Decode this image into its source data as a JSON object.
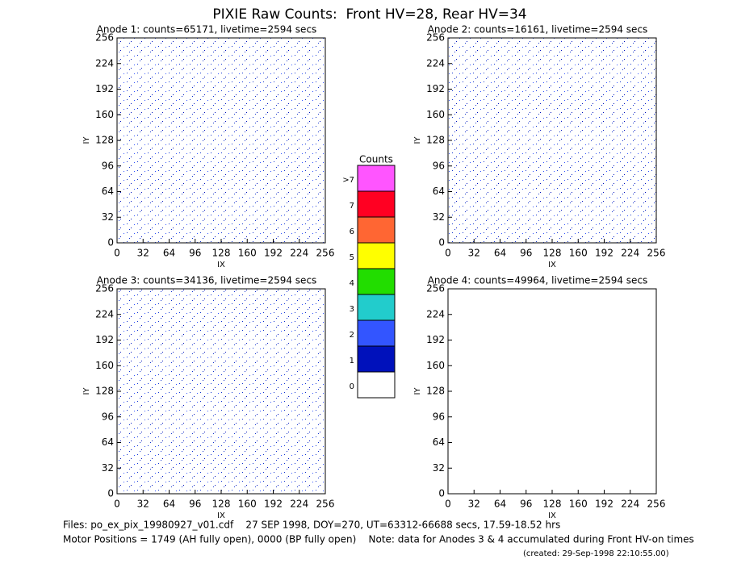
{
  "title": "PIXIE Raw Counts:  Front HV=28, Rear HV=34",
  "chart_data": [
    {
      "type": "heatmap",
      "title": "Anode 1: counts=65171, livetime=2594 secs",
      "xlabel": "IX",
      "ylabel": "IY",
      "xlim": [
        0,
        256
      ],
      "ylim": [
        0,
        256
      ],
      "xticks": [
        0,
        32,
        64,
        96,
        128,
        160,
        192,
        224,
        256
      ],
      "yticks": [
        0,
        32,
        64,
        96,
        128,
        160,
        192,
        224,
        256
      ]
    },
    {
      "type": "heatmap",
      "title": "Anode 2: counts=16161, livetime=2594 secs",
      "xlabel": "IX",
      "ylabel": "IY",
      "xlim": [
        0,
        256
      ],
      "ylim": [
        0,
        256
      ],
      "xticks": [
        0,
        32,
        64,
        96,
        128,
        160,
        192,
        224,
        256
      ],
      "yticks": [
        0,
        32,
        64,
        96,
        128,
        160,
        192,
        224,
        256
      ]
    },
    {
      "type": "heatmap",
      "title": "Anode 3: counts=34136, livetime=2594 secs",
      "xlabel": "IX",
      "ylabel": "IY",
      "xlim": [
        0,
        256
      ],
      "ylim": [
        0,
        256
      ],
      "xticks": [
        0,
        32,
        64,
        96,
        128,
        160,
        192,
        224,
        256
      ],
      "yticks": [
        0,
        32,
        64,
        96,
        128,
        160,
        192,
        224,
        256
      ]
    },
    {
      "type": "heatmap",
      "title": "Anode 4: counts=49964, livetime=2594 secs",
      "xlabel": "IX",
      "ylabel": "IY",
      "xlim": [
        0,
        256
      ],
      "ylim": [
        0,
        256
      ],
      "xticks": [
        0,
        32,
        64,
        96,
        128,
        160,
        192,
        224,
        256
      ],
      "yticks": [
        0,
        32,
        64,
        96,
        128,
        160,
        192,
        224,
        256
      ]
    }
  ],
  "colorbar": {
    "title": "Counts",
    "labels": [
      "0",
      "1",
      "2",
      "3",
      "4",
      "5",
      "6",
      "7",
      ">7"
    ],
    "colors": [
      "#ffffff",
      "#0011bb",
      "#3355ff",
      "#22cccc",
      "#22dd00",
      "#ffff00",
      "#ff6633",
      "#ff0022",
      "#ff55ff"
    ]
  },
  "footer": [
    "Files: po_ex_pix_19980927_v01.cdf    27 SEP 1998, DOY=270, UT=63312-66688 secs, 17.59-18.52 hrs",
    "Motor Positions = 1749 (AH fully open), 0000 (BP fully open)    Note: data for Anodes 3 & 4 accumulated during Front HV-on times",
    "(created: 29-Sep-1998 22:10:55.00)"
  ]
}
